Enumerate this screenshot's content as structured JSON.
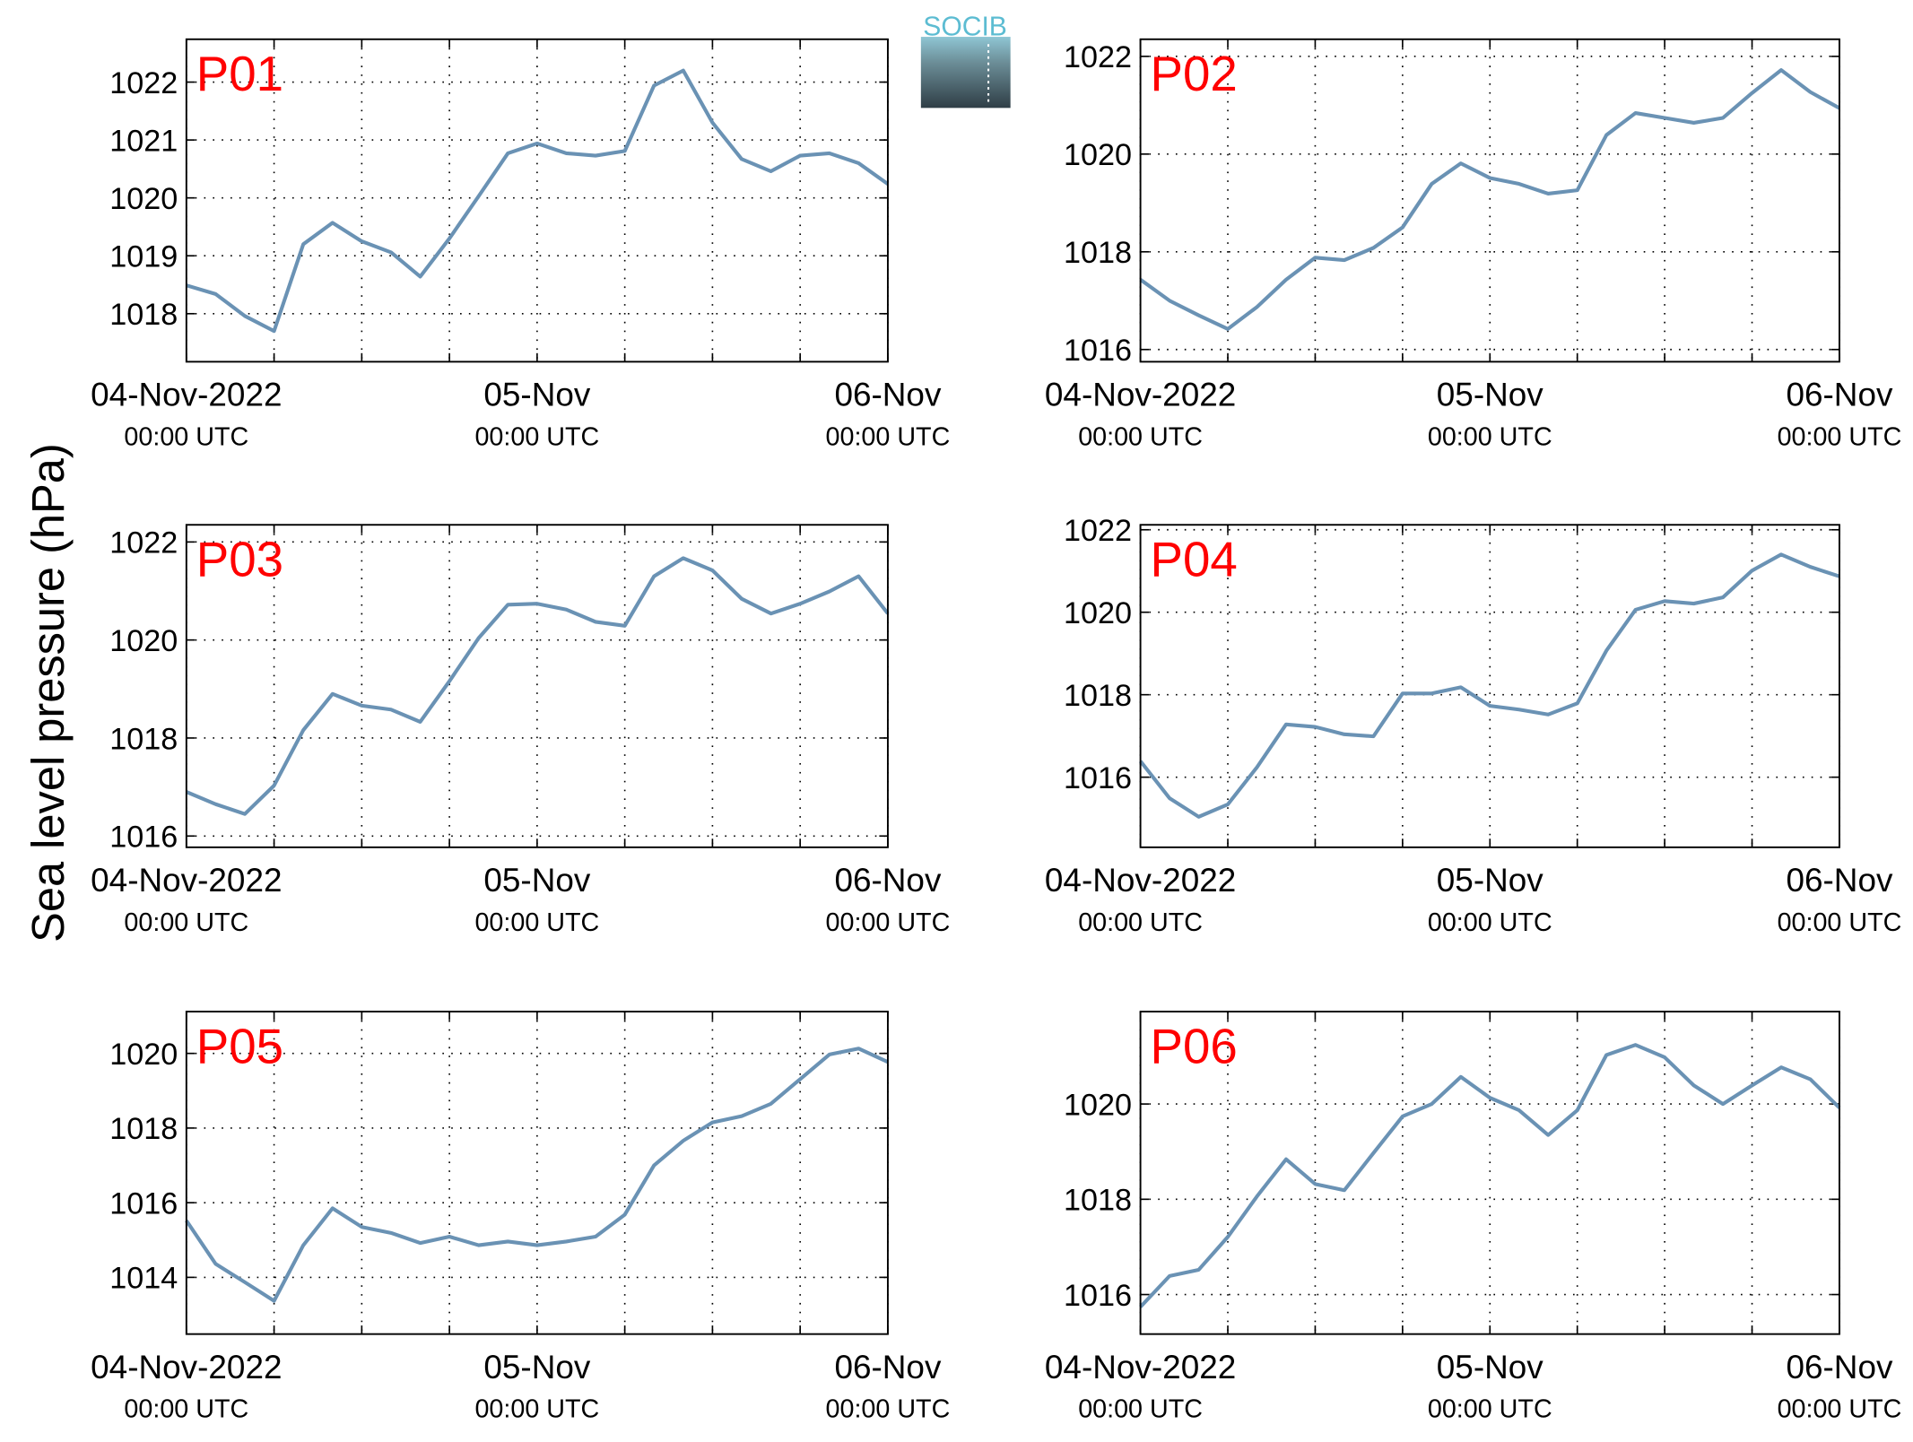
{
  "ylabel": "Sea level pressure (hPa)",
  "logo": "SOCIB",
  "chart_data": [
    {
      "type": "line",
      "title": "P01",
      "color": "#6a92b4",
      "grid": true,
      "x": [
        "2022-11-04T00:00",
        "2022-11-04T02:00",
        "2022-11-04T04:00",
        "2022-11-04T06:00",
        "2022-11-04T08:00",
        "2022-11-04T10:00",
        "2022-11-04T12:00",
        "2022-11-04T14:00",
        "2022-11-04T16:00",
        "2022-11-04T18:00",
        "2022-11-04T20:00",
        "2022-11-04T22:00",
        "2022-11-05T00:00",
        "2022-11-05T02:00",
        "2022-11-05T04:00",
        "2022-11-05T06:00",
        "2022-11-05T08:00",
        "2022-11-05T10:00",
        "2022-11-05T12:00",
        "2022-11-05T14:00",
        "2022-11-05T16:00",
        "2022-11-05T18:00",
        "2022-11-05T20:00",
        "2022-11-05T22:00",
        "2022-11-06T00:00"
      ],
      "values": [
        1018.49,
        1018.34,
        1017.96,
        1017.7,
        1019.2,
        1019.57,
        1019.25,
        1019.06,
        1018.64,
        1019.3,
        1020.03,
        1020.77,
        1020.94,
        1020.77,
        1020.73,
        1020.81,
        1021.94,
        1022.2,
        1021.3,
        1020.67,
        1020.46,
        1020.73,
        1020.77,
        1020.6,
        1020.24
      ],
      "xlim": [
        "2022-11-04T00:00",
        "2022-11-06T00:00"
      ],
      "xticks": [
        {
          "value": "2022-11-04T00:00",
          "label": "04-Nov-2022",
          "sublabel": "00:00 UTC"
        },
        {
          "value": "2022-11-04T06:00"
        },
        {
          "value": "2022-11-04T12:00"
        },
        {
          "value": "2022-11-04T18:00"
        },
        {
          "value": "2022-11-05T00:00",
          "label": "05-Nov",
          "sublabel": "00:00 UTC"
        },
        {
          "value": "2022-11-05T06:00"
        },
        {
          "value": "2022-11-05T12:00"
        },
        {
          "value": "2022-11-05T18:00"
        },
        {
          "value": "2022-11-06T00:00",
          "label": "06-Nov",
          "sublabel": "00:00 UTC"
        }
      ],
      "ylim": [
        1017.17,
        1022.74
      ],
      "yticks": [
        1018,
        1019,
        1020,
        1021,
        1022
      ]
    },
    {
      "type": "line",
      "title": "P02",
      "color": "#6a92b4",
      "grid": true,
      "x": [
        "2022-11-04T00:00",
        "2022-11-04T02:00",
        "2022-11-04T04:00",
        "2022-11-04T06:00",
        "2022-11-04T08:00",
        "2022-11-04T10:00",
        "2022-11-04T12:00",
        "2022-11-04T14:00",
        "2022-11-04T16:00",
        "2022-11-04T18:00",
        "2022-11-04T20:00",
        "2022-11-04T22:00",
        "2022-11-05T00:00",
        "2022-11-05T02:00",
        "2022-11-05T04:00",
        "2022-11-05T06:00",
        "2022-11-05T08:00",
        "2022-11-05T10:00",
        "2022-11-05T12:00",
        "2022-11-05T14:00",
        "2022-11-05T16:00",
        "2022-11-05T18:00",
        "2022-11-05T20:00",
        "2022-11-05T22:00",
        "2022-11-06T00:00"
      ],
      "values": [
        1017.43,
        1017.0,
        1016.7,
        1016.42,
        1016.87,
        1017.43,
        1017.88,
        1017.83,
        1018.08,
        1018.5,
        1019.39,
        1019.81,
        1019.51,
        1019.39,
        1019.19,
        1019.26,
        1020.39,
        1020.84,
        1020.74,
        1020.64,
        1020.74,
        1021.25,
        1021.72,
        1021.27,
        1020.94
      ],
      "xlim": [
        "2022-11-04T00:00",
        "2022-11-06T00:00"
      ],
      "xticks": [
        {
          "value": "2022-11-04T00:00",
          "label": "04-Nov-2022",
          "sublabel": "00:00 UTC"
        },
        {
          "value": "2022-11-04T06:00"
        },
        {
          "value": "2022-11-04T12:00"
        },
        {
          "value": "2022-11-04T18:00"
        },
        {
          "value": "2022-11-05T00:00",
          "label": "05-Nov",
          "sublabel": "00:00 UTC"
        },
        {
          "value": "2022-11-05T06:00"
        },
        {
          "value": "2022-11-05T12:00"
        },
        {
          "value": "2022-11-05T18:00"
        },
        {
          "value": "2022-11-06T00:00",
          "label": "06-Nov",
          "sublabel": "00:00 UTC"
        }
      ],
      "ylim": [
        1015.75,
        1022.35
      ],
      "yticks": [
        1016,
        1018,
        1020,
        1022
      ]
    },
    {
      "type": "line",
      "title": "P03",
      "color": "#6a92b4",
      "grid": true,
      "x": [
        "2022-11-04T00:00",
        "2022-11-04T02:00",
        "2022-11-04T04:00",
        "2022-11-04T06:00",
        "2022-11-04T08:00",
        "2022-11-04T10:00",
        "2022-11-04T12:00",
        "2022-11-04T14:00",
        "2022-11-04T16:00",
        "2022-11-04T18:00",
        "2022-11-04T20:00",
        "2022-11-04T22:00",
        "2022-11-05T00:00",
        "2022-11-05T02:00",
        "2022-11-05T04:00",
        "2022-11-05T06:00",
        "2022-11-05T08:00",
        "2022-11-05T10:00",
        "2022-11-05T12:00",
        "2022-11-05T14:00",
        "2022-11-05T16:00",
        "2022-11-05T18:00",
        "2022-11-05T20:00",
        "2022-11-05T22:00",
        "2022-11-06T00:00"
      ],
      "values": [
        1016.9,
        1016.65,
        1016.45,
        1017.03,
        1018.16,
        1018.9,
        1018.66,
        1018.58,
        1018.33,
        1019.16,
        1020.04,
        1020.72,
        1020.74,
        1020.62,
        1020.37,
        1020.29,
        1021.3,
        1021.67,
        1021.42,
        1020.84,
        1020.54,
        1020.74,
        1020.99,
        1021.3,
        1020.54
      ],
      "xlim": [
        "2022-11-04T00:00",
        "2022-11-06T00:00"
      ],
      "xticks": [
        {
          "value": "2022-11-04T00:00",
          "label": "04-Nov-2022",
          "sublabel": "00:00 UTC"
        },
        {
          "value": "2022-11-04T06:00"
        },
        {
          "value": "2022-11-04T12:00"
        },
        {
          "value": "2022-11-04T18:00"
        },
        {
          "value": "2022-11-05T00:00",
          "label": "05-Nov",
          "sublabel": "00:00 UTC"
        },
        {
          "value": "2022-11-05T06:00"
        },
        {
          "value": "2022-11-05T12:00"
        },
        {
          "value": "2022-11-05T18:00"
        },
        {
          "value": "2022-11-06T00:00",
          "label": "06-Nov",
          "sublabel": "00:00 UTC"
        }
      ],
      "ylim": [
        1015.77,
        1022.35
      ],
      "yticks": [
        1016,
        1018,
        1020,
        1022
      ]
    },
    {
      "type": "line",
      "title": "P04",
      "color": "#6a92b4",
      "grid": true,
      "x": [
        "2022-11-04T00:00",
        "2022-11-04T02:00",
        "2022-11-04T04:00",
        "2022-11-04T06:00",
        "2022-11-04T08:00",
        "2022-11-04T10:00",
        "2022-11-04T12:00",
        "2022-11-04T14:00",
        "2022-11-04T16:00",
        "2022-11-04T18:00",
        "2022-11-04T20:00",
        "2022-11-04T22:00",
        "2022-11-05T00:00",
        "2022-11-05T02:00",
        "2022-11-05T04:00",
        "2022-11-05T06:00",
        "2022-11-05T08:00",
        "2022-11-05T10:00",
        "2022-11-05T12:00",
        "2022-11-05T14:00",
        "2022-11-05T16:00",
        "2022-11-05T18:00",
        "2022-11-05T20:00",
        "2022-11-05T22:00",
        "2022-11-06T00:00"
      ],
      "values": [
        1016.39,
        1015.49,
        1015.04,
        1015.34,
        1016.24,
        1017.28,
        1017.22,
        1017.04,
        1016.99,
        1018.03,
        1018.03,
        1018.18,
        1017.73,
        1017.64,
        1017.52,
        1017.79,
        1019.07,
        1020.06,
        1020.27,
        1020.21,
        1020.36,
        1021.01,
        1021.4,
        1021.1,
        1020.87
      ],
      "xlim": [
        "2022-11-04T00:00",
        "2022-11-06T00:00"
      ],
      "xticks": [
        {
          "value": "2022-11-04T00:00",
          "label": "04-Nov-2022",
          "sublabel": "00:00 UTC"
        },
        {
          "value": "2022-11-04T06:00"
        },
        {
          "value": "2022-11-04T12:00"
        },
        {
          "value": "2022-11-04T18:00"
        },
        {
          "value": "2022-11-05T00:00",
          "label": "05-Nov",
          "sublabel": "00:00 UTC"
        },
        {
          "value": "2022-11-05T06:00"
        },
        {
          "value": "2022-11-05T12:00"
        },
        {
          "value": "2022-11-05T18:00"
        },
        {
          "value": "2022-11-06T00:00",
          "label": "06-Nov",
          "sublabel": "00:00 UTC"
        }
      ],
      "ylim": [
        1014.3,
        1022.12
      ],
      "yticks": [
        1016,
        1018,
        1020,
        1022
      ]
    },
    {
      "type": "line",
      "title": "P05",
      "color": "#6a92b4",
      "grid": true,
      "x": [
        "2022-11-04T00:00",
        "2022-11-04T02:00",
        "2022-11-04T04:00",
        "2022-11-04T06:00",
        "2022-11-04T08:00",
        "2022-11-04T10:00",
        "2022-11-04T12:00",
        "2022-11-04T14:00",
        "2022-11-04T16:00",
        "2022-11-04T18:00",
        "2022-11-04T20:00",
        "2022-11-04T22:00",
        "2022-11-05T00:00",
        "2022-11-05T02:00",
        "2022-11-05T04:00",
        "2022-11-05T06:00",
        "2022-11-05T08:00",
        "2022-11-05T10:00",
        "2022-11-05T12:00",
        "2022-11-05T14:00",
        "2022-11-05T16:00",
        "2022-11-05T18:00",
        "2022-11-05T20:00",
        "2022-11-05T22:00",
        "2022-11-06T00:00"
      ],
      "values": [
        1015.52,
        1014.36,
        1013.87,
        1013.37,
        1014.86,
        1015.85,
        1015.35,
        1015.19,
        1014.92,
        1015.09,
        1014.86,
        1014.96,
        1014.86,
        1014.96,
        1015.09,
        1015.68,
        1017.0,
        1017.66,
        1018.15,
        1018.32,
        1018.65,
        1019.31,
        1019.97,
        1020.13,
        1019.77
      ],
      "xlim": [
        "2022-11-04T00:00",
        "2022-11-06T00:00"
      ],
      "xticks": [
        {
          "value": "2022-11-04T00:00",
          "label": "04-Nov-2022",
          "sublabel": "00:00 UTC"
        },
        {
          "value": "2022-11-04T06:00"
        },
        {
          "value": "2022-11-04T12:00"
        },
        {
          "value": "2022-11-04T18:00"
        },
        {
          "value": "2022-11-05T00:00",
          "label": "05-Nov",
          "sublabel": "00:00 UTC"
        },
        {
          "value": "2022-11-05T06:00"
        },
        {
          "value": "2022-11-05T12:00"
        },
        {
          "value": "2022-11-05T18:00"
        },
        {
          "value": "2022-11-06T00:00",
          "label": "06-Nov",
          "sublabel": "00:00 UTC"
        }
      ],
      "ylim": [
        1012.48,
        1021.12
      ],
      "yticks": [
        1014,
        1016,
        1018,
        1020
      ]
    },
    {
      "type": "line",
      "title": "P06",
      "color": "#6a92b4",
      "grid": true,
      "x": [
        "2022-11-04T00:00",
        "2022-11-04T02:00",
        "2022-11-04T04:00",
        "2022-11-04T06:00",
        "2022-11-04T08:00",
        "2022-11-04T10:00",
        "2022-11-04T12:00",
        "2022-11-04T14:00",
        "2022-11-04T16:00",
        "2022-11-04T18:00",
        "2022-11-04T20:00",
        "2022-11-04T22:00",
        "2022-11-05T00:00",
        "2022-11-05T02:00",
        "2022-11-05T04:00",
        "2022-11-05T06:00",
        "2022-11-05T08:00",
        "2022-11-05T10:00",
        "2022-11-05T12:00",
        "2022-11-05T14:00",
        "2022-11-05T16:00",
        "2022-11-05T18:00",
        "2022-11-05T20:00",
        "2022-11-05T22:00",
        "2022-11-06T00:00"
      ],
      "values": [
        1015.74,
        1016.39,
        1016.52,
        1017.21,
        1018.06,
        1018.84,
        1018.32,
        1018.19,
        1018.97,
        1019.74,
        1020.0,
        1020.57,
        1020.13,
        1019.87,
        1019.35,
        1019.87,
        1021.03,
        1021.24,
        1020.98,
        1020.39,
        1020.0,
        1020.39,
        1020.77,
        1020.52,
        1019.92
      ],
      "xlim": [
        "2022-11-04T00:00",
        "2022-11-06T00:00"
      ],
      "xticks": [
        {
          "value": "2022-11-04T00:00",
          "label": "04-Nov-2022",
          "sublabel": "00:00 UTC"
        },
        {
          "value": "2022-11-04T06:00"
        },
        {
          "value": "2022-11-04T12:00"
        },
        {
          "value": "2022-11-04T18:00"
        },
        {
          "value": "2022-11-05T00:00",
          "label": "05-Nov",
          "sublabel": "00:00 UTC"
        },
        {
          "value": "2022-11-05T06:00"
        },
        {
          "value": "2022-11-05T12:00"
        },
        {
          "value": "2022-11-05T18:00"
        },
        {
          "value": "2022-11-06T00:00",
          "label": "06-Nov",
          "sublabel": "00:00 UTC"
        }
      ],
      "ylim": [
        1015.17,
        1021.94
      ],
      "yticks": [
        1016,
        1018,
        1020
      ]
    }
  ]
}
